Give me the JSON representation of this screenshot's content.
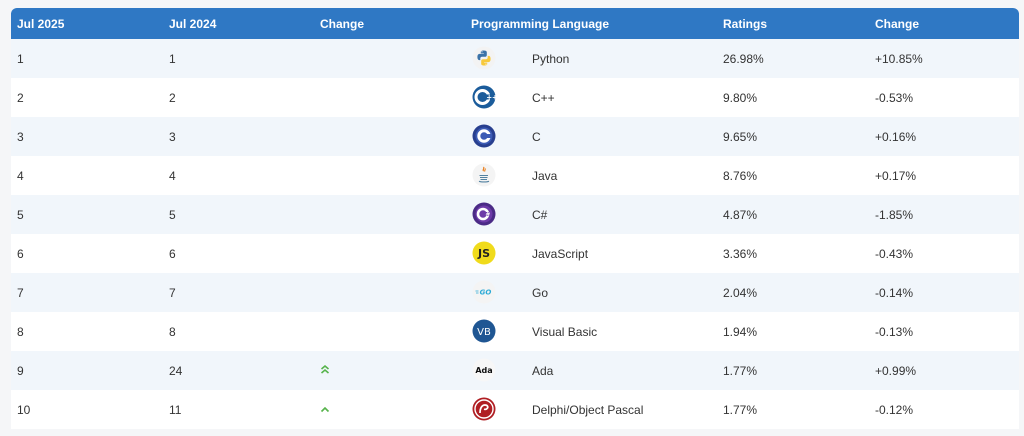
{
  "header": {
    "col_jul2025": "Jul 2025",
    "col_jul2024": "Jul 2024",
    "col_change": "Change",
    "col_language": "Programming Language",
    "col_ratings": "Ratings",
    "col_change2": "Change"
  },
  "rows": [
    {
      "rank2025": "1",
      "rank2024": "1",
      "trend": "",
      "language": "Python",
      "rating": "26.98%",
      "change": "+10.85%",
      "icon": "python-icon"
    },
    {
      "rank2025": "2",
      "rank2024": "2",
      "trend": "",
      "language": "C++",
      "rating": "9.80%",
      "change": "-0.53%",
      "icon": "cpp-icon"
    },
    {
      "rank2025": "3",
      "rank2024": "3",
      "trend": "",
      "language": "C",
      "rating": "9.65%",
      "change": "+0.16%",
      "icon": "c-icon"
    },
    {
      "rank2025": "4",
      "rank2024": "4",
      "trend": "",
      "language": "Java",
      "rating": "8.76%",
      "change": "+0.17%",
      "icon": "java-icon"
    },
    {
      "rank2025": "5",
      "rank2024": "5",
      "trend": "",
      "language": "C#",
      "rating": "4.87%",
      "change": "-1.85%",
      "icon": "csharp-icon"
    },
    {
      "rank2025": "6",
      "rank2024": "6",
      "trend": "",
      "language": "JavaScript",
      "rating": "3.36%",
      "change": "-0.43%",
      "icon": "javascript-icon"
    },
    {
      "rank2025": "7",
      "rank2024": "7",
      "trend": "",
      "language": "Go",
      "rating": "2.04%",
      "change": "-0.14%",
      "icon": "go-icon"
    },
    {
      "rank2025": "8",
      "rank2024": "8",
      "trend": "",
      "language": "Visual Basic",
      "rating": "1.94%",
      "change": "-0.13%",
      "icon": "visual-basic-icon"
    },
    {
      "rank2025": "9",
      "rank2024": "24",
      "trend": "double-up",
      "language": "Ada",
      "rating": "1.77%",
      "change": "+0.99%",
      "icon": "ada-icon"
    },
    {
      "rank2025": "10",
      "rank2024": "11",
      "trend": "up",
      "language": "Delphi/Object Pascal",
      "rating": "1.77%",
      "change": "-0.12%",
      "icon": "delphi-icon"
    }
  ],
  "colors": {
    "header_bg": "#2f78c4",
    "row_alt_bg": "#f1f6fb",
    "trend_up": "#56b34b"
  },
  "icon_text": {
    "javascript": "JS",
    "visual_basic": "VB",
    "ada": "Ada",
    "go": "GO"
  }
}
